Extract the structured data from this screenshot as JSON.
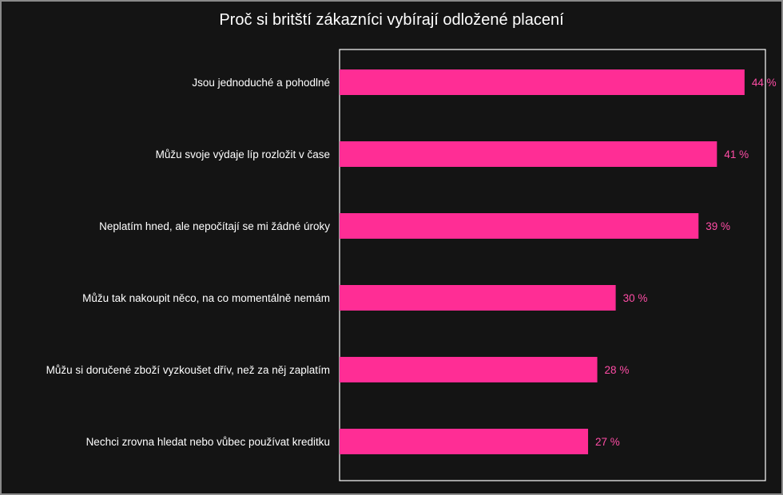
{
  "chart_data": {
    "type": "bar",
    "orientation": "horizontal",
    "title": "Proč si britští zákazníci vybírají odložené placení",
    "categories": [
      "Jsou jednoduché a pohodlné",
      "Můžu svoje výdaje líp rozložit v čase",
      "Neplatím hned, ale nepočítají se mi žádné úroky",
      "Můžu tak nakoupit něco, na co momentálně nemám",
      "Můžu si doručené zboží vyzkoušet dřív, než za něj zaplatím",
      "Nechci zrovna hledat nebo vůbec používat kreditku"
    ],
    "values": [
      44,
      41,
      39,
      30,
      28,
      27
    ],
    "value_labels": [
      "44 %",
      "41 %",
      "39 %",
      "30 %",
      "28 %",
      "27 %"
    ],
    "xlim": [
      0,
      48
    ],
    "grid": false,
    "legend": "none",
    "colors": {
      "background": "#141414",
      "bar": "#ff2d95",
      "value_label": "#ff4da6",
      "text": "#ffffff",
      "plot_border": "#ffffff"
    }
  }
}
